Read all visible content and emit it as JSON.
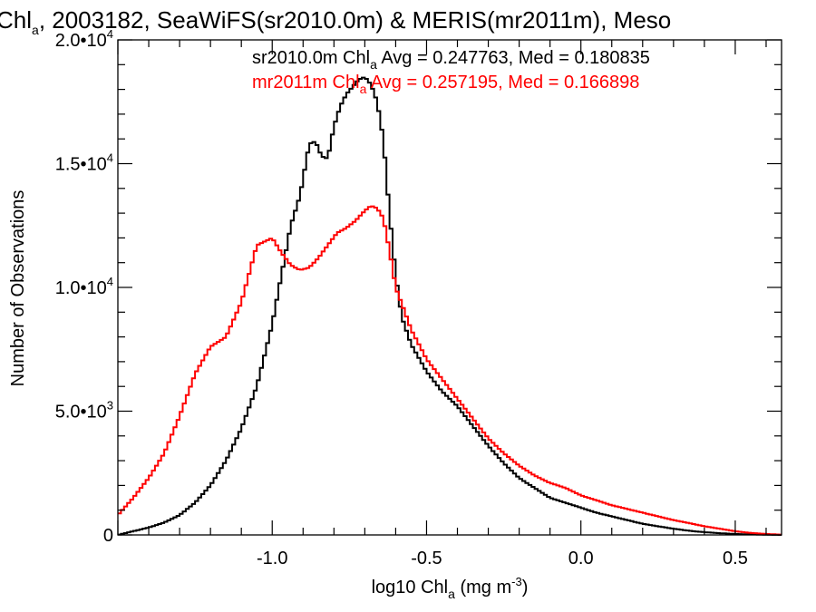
{
  "chart_data": {
    "type": "line",
    "title_parts": [
      "Chl",
      "a",
      ", 2003182, SeaWiFS(sr2010.0m) & MERIS(mr2011m), Meso"
    ],
    "xlabel_parts": [
      "log10 Chl",
      "a",
      " (mg m",
      "-3",
      ")"
    ],
    "ylabel": "Number of Observations",
    "xlim": [
      -1.5,
      0.65
    ],
    "ylim": [
      0,
      20000
    ],
    "x_ticks": [
      {
        "value": -1.0,
        "label": "-1.0"
      },
      {
        "value": -0.5,
        "label": "-0.5"
      },
      {
        "value": 0.0,
        "label": "0.0"
      },
      {
        "value": 0.5,
        "label": "0.5"
      }
    ],
    "y_ticks": [
      {
        "value": 0,
        "mantissa": "0",
        "exp": ""
      },
      {
        "value": 5000,
        "mantissa": "5.0•10",
        "exp": "3"
      },
      {
        "value": 10000,
        "mantissa": "1.0•10",
        "exp": "4"
      },
      {
        "value": 15000,
        "mantissa": "1.5•10",
        "exp": "4"
      },
      {
        "value": 20000,
        "mantissa": "2.0•10",
        "exp": "4"
      }
    ],
    "series": [
      {
        "name": "sr2010.0m",
        "color": "#000000",
        "legend_parts": [
          "sr2010.0m Chl",
          "a",
          " Avg = 0.247763, Med = 0.180835"
        ],
        "x": [
          -1.5,
          -1.45,
          -1.4,
          -1.35,
          -1.3,
          -1.25,
          -1.2,
          -1.15,
          -1.1,
          -1.05,
          -1.0,
          -0.97,
          -0.94,
          -0.91,
          -0.88,
          -0.86,
          -0.84,
          -0.82,
          -0.8,
          -0.78,
          -0.76,
          -0.74,
          -0.72,
          -0.7,
          -0.68,
          -0.66,
          -0.64,
          -0.62,
          -0.6,
          -0.58,
          -0.55,
          -0.5,
          -0.45,
          -0.4,
          -0.35,
          -0.3,
          -0.25,
          -0.2,
          -0.15,
          -0.1,
          -0.05,
          0.0,
          0.05,
          0.1,
          0.15,
          0.2,
          0.25,
          0.3,
          0.35,
          0.4,
          0.45,
          0.5,
          0.55,
          0.6,
          0.65
        ],
        "y": [
          0,
          150,
          300,
          500,
          800,
          1300,
          2000,
          3000,
          4300,
          6000,
          8500,
          10500,
          12500,
          13700,
          15800,
          15900,
          15300,
          15200,
          16500,
          17300,
          17800,
          18100,
          18400,
          18500,
          18200,
          17500,
          16000,
          13000,
          10500,
          8800,
          7700,
          6600,
          5800,
          5200,
          4400,
          3600,
          2900,
          2300,
          1900,
          1500,
          1300,
          1100,
          900,
          750,
          600,
          450,
          350,
          250,
          170,
          110,
          70,
          40,
          20,
          10,
          0
        ]
      },
      {
        "name": "mr2011m",
        "color": "#ff0000",
        "legend_parts": [
          "mr2011m Chl",
          "a",
          " Avg = 0.257195, Med = 0.166898"
        ],
        "x": [
          -1.5,
          -1.45,
          -1.4,
          -1.35,
          -1.3,
          -1.25,
          -1.2,
          -1.15,
          -1.1,
          -1.05,
          -1.0,
          -0.97,
          -0.94,
          -0.91,
          -0.88,
          -0.85,
          -0.82,
          -0.79,
          -0.76,
          -0.73,
          -0.7,
          -0.68,
          -0.66,
          -0.64,
          -0.62,
          -0.6,
          -0.57,
          -0.55,
          -0.5,
          -0.45,
          -0.4,
          -0.35,
          -0.3,
          -0.25,
          -0.2,
          -0.15,
          -0.1,
          -0.05,
          0.0,
          0.05,
          0.1,
          0.15,
          0.2,
          0.25,
          0.3,
          0.35,
          0.4,
          0.45,
          0.5,
          0.55,
          0.6,
          0.65
        ],
        "y": [
          800,
          1500,
          2300,
          3300,
          4800,
          6500,
          7600,
          8000,
          9400,
          11700,
          12000,
          11400,
          10900,
          10700,
          10800,
          11200,
          11700,
          12200,
          12400,
          12700,
          13100,
          13300,
          13200,
          12800,
          11500,
          10000,
          9000,
          8300,
          7100,
          6300,
          5500,
          4700,
          3900,
          3300,
          2800,
          2400,
          2100,
          1900,
          1600,
          1400,
          1200,
          1050,
          900,
          750,
          600,
          480,
          350,
          250,
          150,
          80,
          40,
          10
        ]
      }
    ],
    "grid": false
  }
}
